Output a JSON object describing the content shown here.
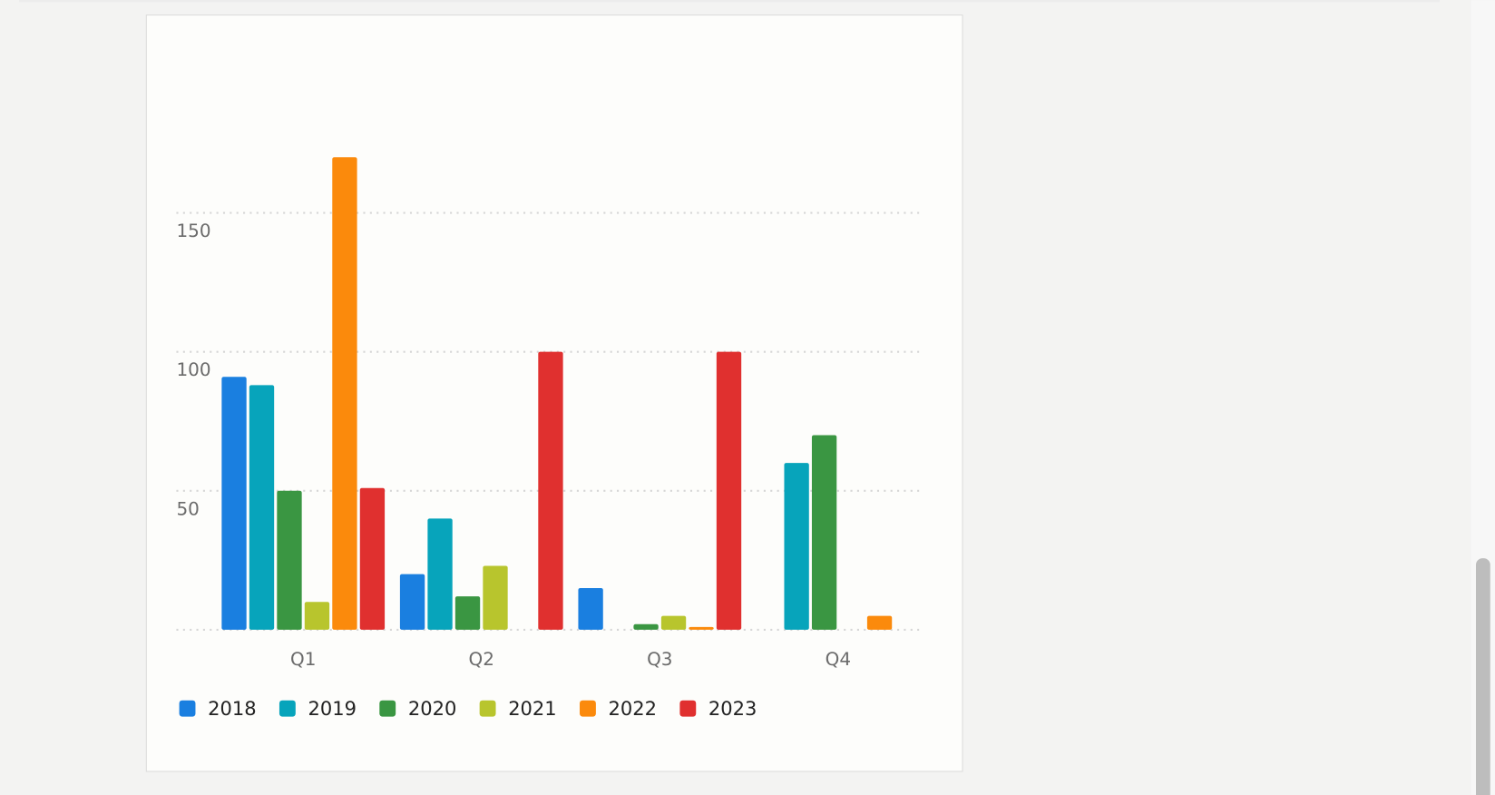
{
  "chart_data": {
    "type": "bar",
    "categories": [
      "Q1",
      "Q2",
      "Q3",
      "Q4"
    ],
    "series": [
      {
        "name": "2018",
        "color": "#1a7fe0",
        "values": [
          91,
          20,
          15,
          null
        ]
      },
      {
        "name": "2019",
        "color": "#07a4bb",
        "values": [
          88,
          40,
          null,
          60
        ]
      },
      {
        "name": "2020",
        "color": "#3a9642",
        "values": [
          50,
          12,
          2,
          70
        ]
      },
      {
        "name": "2021",
        "color": "#b8c52d",
        "values": [
          10,
          23,
          5,
          null
        ]
      },
      {
        "name": "2022",
        "color": "#fb8a0c",
        "values": [
          170,
          null,
          1,
          5
        ]
      },
      {
        "name": "2023",
        "color": "#e0302f",
        "values": [
          51,
          100,
          100,
          null
        ]
      }
    ],
    "ylim": [
      0,
      200
    ],
    "yticks": [
      0,
      50,
      100,
      150
    ],
    "grid": true,
    "legend": "bottom-left"
  }
}
